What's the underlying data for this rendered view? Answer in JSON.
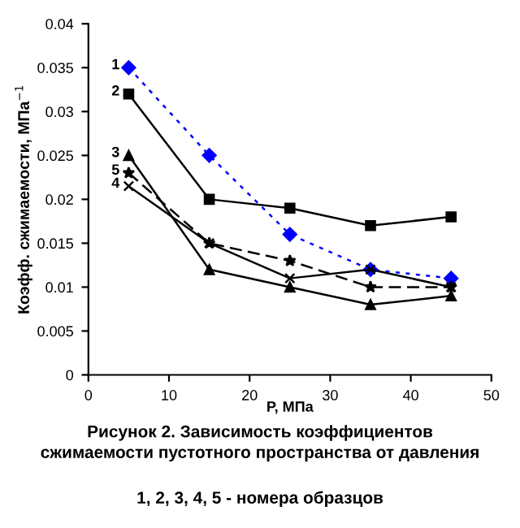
{
  "chart_data": {
    "type": "line",
    "xlabel": "P, МПа",
    "ylabel": "Коэфф. сжимаемости, МПа$^{−1}$",
    "x": [
      5,
      15,
      25,
      35,
      45
    ],
    "series": [
      {
        "name": "1",
        "color": "#0000ff",
        "marker": "diamond",
        "line_style": "dotted",
        "values": [
          0.035,
          0.025,
          0.016,
          0.012,
          0.011
        ]
      },
      {
        "name": "2",
        "color": "#000000",
        "marker": "square",
        "line_style": "solid",
        "values": [
          0.032,
          0.02,
          0.019,
          0.017,
          0.018
        ]
      },
      {
        "name": "3",
        "color": "#000000",
        "marker": "triangle",
        "line_style": "solid",
        "values": [
          0.025,
          0.012,
          0.01,
          0.008,
          0.009
        ]
      },
      {
        "name": "4",
        "color": "#000000",
        "marker": "cross",
        "line_style": "solid",
        "values": [
          0.0215,
          0.015,
          0.011,
          0.012,
          0.01
        ]
      },
      {
        "name": "5",
        "color": "#000000",
        "marker": "star",
        "line_style": "dashed",
        "values": [
          0.023,
          0.015,
          0.013,
          0.01,
          0.01
        ]
      }
    ],
    "xlim": [
      0,
      50
    ],
    "xticks": [
      0,
      10,
      20,
      30,
      40,
      50
    ],
    "ylim": [
      0,
      0.04
    ],
    "yticks": [
      0,
      0.005,
      0.01,
      0.015,
      0.02,
      0.025,
      0.03,
      0.035,
      0.04
    ],
    "grid": false,
    "legend": false,
    "annotations": [
      "Рисунок 2. Зависимость коэффициентов сжимаемости пустотного пространства от давления",
      "1, 2, 3, 4, 5 - номера образцов"
    ]
  }
}
